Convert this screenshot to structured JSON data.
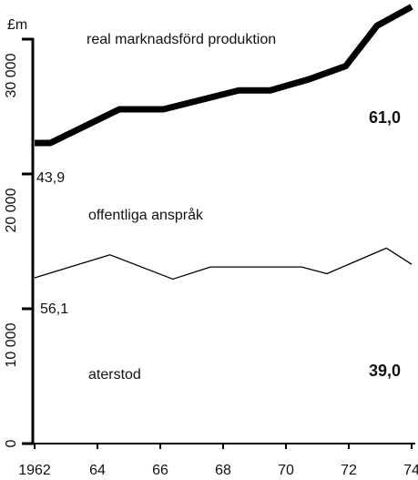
{
  "chart_data": {
    "type": "line",
    "y_unit": "£m",
    "annotations": [
      "real marknadsförd produktion",
      "61,0",
      "43,9",
      "offentliga anspråk",
      "56,1",
      "aterstod",
      "39,0"
    ],
    "series": [
      {
        "name": "real marknadsförd produktion",
        "color": "#000000",
        "width": 7,
        "x": [
          1962,
          1962.5,
          1964.7,
          1966.1,
          1968.5,
          1969.5,
          1970.7,
          1971.9,
          1972.9,
          1974
        ],
        "values": [
          22300,
          22300,
          24800,
          24800,
          26200,
          26200,
          27000,
          28000,
          31000,
          32400
        ]
      },
      {
        "name": "offentliga anspråk",
        "color": "#000000",
        "width": 1.3,
        "x": [
          1962,
          1964.4,
          1966.4,
          1967.6,
          1970.5,
          1971.3,
          1973.2,
          1974
        ],
        "values": [
          12300,
          14000,
          12200,
          13100,
          13100,
          12600,
          14500,
          13300
        ]
      }
    ],
    "xlim": [
      1962,
      1974
    ],
    "xticks": [
      {
        "value": 1962,
        "label": "1962"
      },
      {
        "value": 1964,
        "label": "64"
      },
      {
        "value": 1966,
        "label": "66"
      },
      {
        "value": 1968,
        "label": "68"
      },
      {
        "value": 1970,
        "label": "70"
      },
      {
        "value": 1972,
        "label": "72"
      },
      {
        "value": 1974,
        "label": "74"
      }
    ],
    "ylim": [
      0,
      32500
    ],
    "yticks": [
      0,
      {
        "value": 10000,
        "label": "10 000"
      },
      {
        "value": 20000,
        "label": "20 000"
      },
      {
        "value": 30000,
        "label": "30 000"
      }
    ]
  }
}
